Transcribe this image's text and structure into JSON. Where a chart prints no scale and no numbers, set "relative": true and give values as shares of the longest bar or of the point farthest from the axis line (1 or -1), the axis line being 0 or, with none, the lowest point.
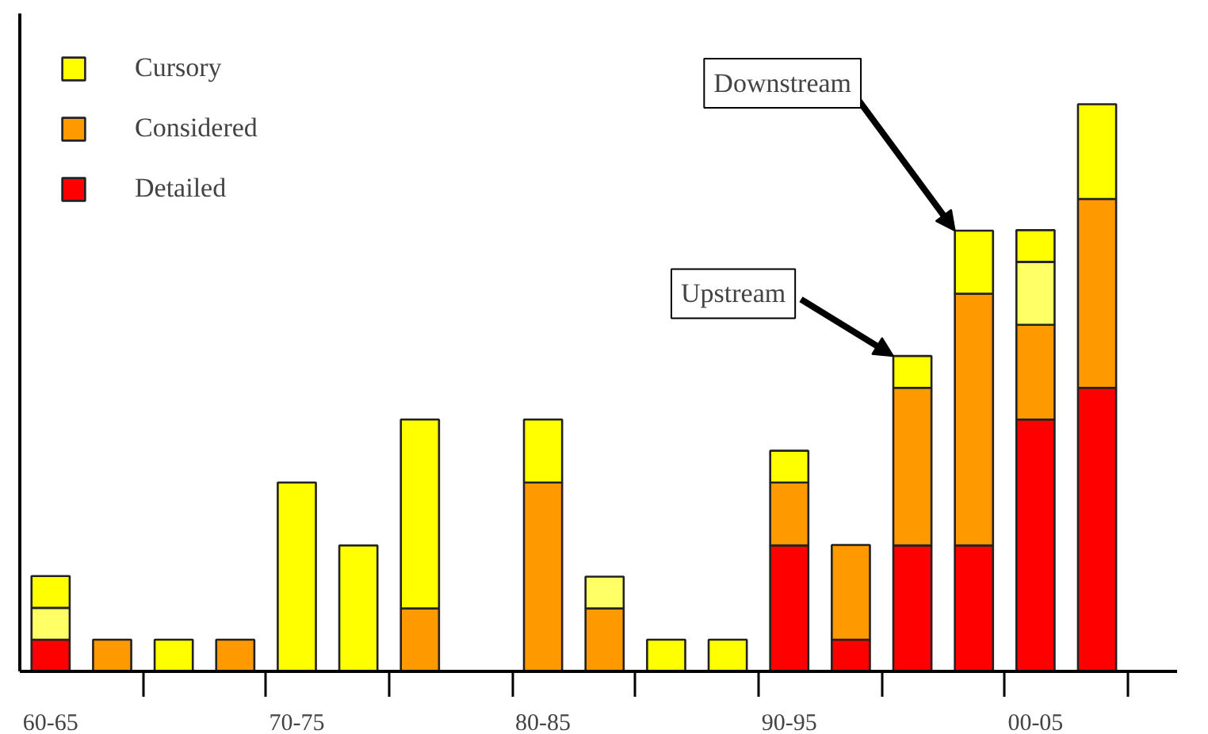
{
  "chart_data": {
    "type": "bar",
    "stacked": true,
    "relative": true,
    "legend": "top left",
    "grid": false,
    "categories": [
      "60-65",
      null,
      null,
      null,
      "70-75",
      null,
      null,
      null,
      "80-85",
      null,
      null,
      null,
      "90-95",
      null,
      null,
      null,
      "00-05",
      null
    ],
    "series": [
      {
        "name": "Detailed",
        "color": "#ff0000",
        "values": [
          0.056,
          null,
          null,
          null,
          null,
          null,
          null,
          null,
          null,
          null,
          null,
          null,
          0.222,
          0.056,
          0.222,
          0.222,
          0.444,
          0.5
        ]
      },
      {
        "name": "Considered",
        "color": "#ff9900",
        "values": [
          null,
          0.056,
          null,
          0.056,
          null,
          null,
          0.111,
          null,
          0.333,
          0.111,
          null,
          null,
          0.111,
          0.167,
          0.278,
          0.444,
          0.167,
          0.333
        ]
      },
      {
        "color": "#ffff66",
        "values": [
          0.056,
          null,
          null,
          null,
          null,
          null,
          null,
          null,
          null,
          0.056,
          null,
          null,
          null,
          null,
          null,
          null,
          0.111,
          null
        ]
      },
      {
        "name": "Cursory",
        "color": "#ffff00",
        "values": [
          0.056,
          null,
          0.056,
          null,
          0.333,
          0.222,
          0.333,
          null,
          0.111,
          null,
          0.056,
          0.056,
          0.056,
          null,
          0.056,
          0.111,
          0.056,
          0.167
        ]
      }
    ],
    "annotations": [
      "Upstream",
      "Downstream"
    ]
  }
}
